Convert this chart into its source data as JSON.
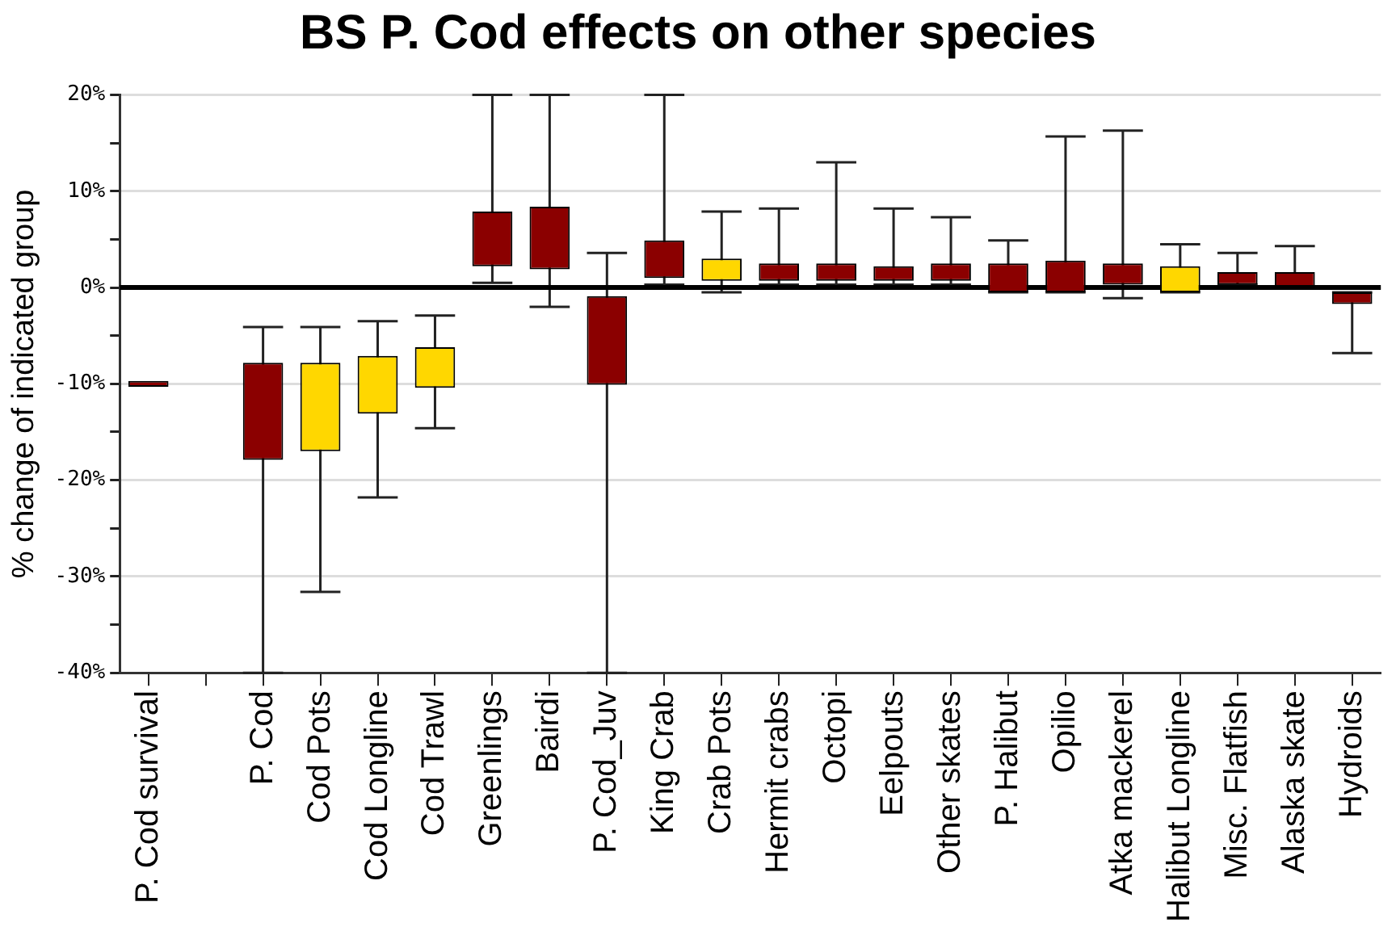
{
  "chart_data": {
    "type": "bar",
    "title": "BS P. Cod effects on other species",
    "ylabel": "% change of indicated group",
    "categories": [
      "P. Cod survival",
      null,
      "P. Cod",
      "Cod Pots",
      "Cod Longline",
      "Cod Trawl",
      "Greenlings",
      "Bairdi",
      "P. Cod_Juv",
      "King Crab",
      "Crab Pots",
      "Hermit crabs",
      "Octopi",
      "Eelpouts",
      "Other skates",
      "P. Halibut",
      "Opilio",
      "Atka mackerel",
      "Halibut Longline",
      "Misc. Flatfish",
      "Alaska skate",
      "Hydroids"
    ],
    "base": [
      -10.3,
      null,
      -17.9,
      -17.0,
      -13.1,
      -10.4,
      2.2,
      1.9,
      -10.1,
      1.0,
      0.7,
      0.7,
      0.7,
      0.7,
      0.7,
      -0.5,
      -0.5,
      0.3,
      -0.5,
      0.3,
      0.1,
      -1.7
    ],
    "values": [
      0.6,
      null,
      10.1,
      9.2,
      6.0,
      4.2,
      5.7,
      6.5,
      9.2,
      3.9,
      2.3,
      1.8,
      1.8,
      1.5,
      1.8,
      3.0,
      3.3,
      2.2,
      2.7,
      1.3,
      1.5,
      1.2
    ],
    "errors": [
      null,
      null,
      [
        -40,
        -4.1
      ],
      [
        -31.6,
        -4.1
      ],
      [
        -21.8,
        -3.5
      ],
      [
        -14.6,
        -2.9
      ],
      [
        0.5,
        20
      ],
      [
        -2.0,
        20
      ],
      [
        -40,
        3.6
      ],
      [
        0.3,
        20
      ],
      [
        -0.5,
        7.9
      ],
      [
        0.3,
        8.2
      ],
      [
        0.3,
        13.0
      ],
      [
        0.3,
        8.2
      ],
      [
        0.3,
        7.3
      ],
      [
        -0.5,
        4.9
      ],
      [
        -0.5,
        15.7
      ],
      [
        -1.1,
        16.3
      ],
      [
        -0.5,
        4.5
      ],
      [
        0.3,
        3.6
      ],
      [
        0.1,
        4.3
      ],
      [
        -6.8,
        -0.5
      ]
    ],
    "colors": [
      "#8b0000",
      null,
      "#8b0000",
      "#ffd700",
      "#ffd700",
      "#ffd700",
      "#8b0000",
      "#8b0000",
      "#8b0000",
      "#8b0000",
      "#ffd700",
      "#8b0000",
      "#8b0000",
      "#8b0000",
      "#8b0000",
      "#8b0000",
      "#8b0000",
      "#8b0000",
      "#ffd700",
      "#8b0000",
      "#8b0000",
      "#8b0000"
    ],
    "ylim": [
      -40,
      20
    ],
    "yticks": [
      {
        "value": -40,
        "label": "-40%"
      },
      {
        "value": -35,
        "label": null
      },
      {
        "value": -30,
        "label": "-30%"
      },
      {
        "value": -25,
        "label": null
      },
      {
        "value": -20,
        "label": "-20%"
      },
      {
        "value": -15,
        "label": null
      },
      {
        "value": -10,
        "label": "-10%"
      },
      {
        "value": -5,
        "label": null
      },
      {
        "value": 0,
        "label": "0%"
      },
      {
        "value": 5,
        "label": null
      },
      {
        "value": 10,
        "label": "10%"
      },
      {
        "value": 15,
        "label": null
      },
      {
        "value": 20,
        "label": "20%"
      }
    ],
    "ref_lines": [
      {
        "axis": "y",
        "value": 0,
        "color": "#000000"
      }
    ],
    "grid": "y",
    "legend": false
  }
}
